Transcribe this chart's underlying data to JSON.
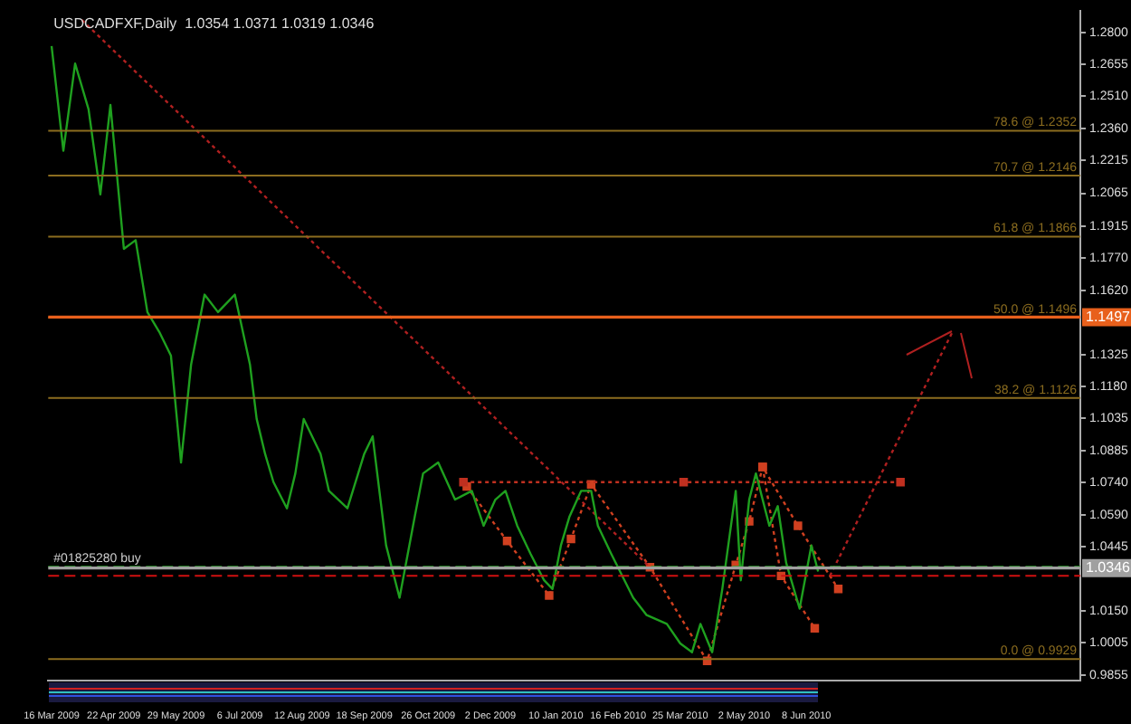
{
  "chart_data": {
    "type": "line",
    "title": "USDCADFXF,Daily  1.0354 1.0371 1.0319 1.0346",
    "x": [
      "2009-03-16",
      "2009-03-23",
      "2009-03-30",
      "2009-04-07",
      "2009-04-14",
      "2009-04-20",
      "2009-04-28",
      "2009-05-05",
      "2009-05-12",
      "2009-05-19",
      "2009-05-26",
      "2009-06-01",
      "2009-06-07",
      "2009-06-15",
      "2009-06-23",
      "2009-07-03",
      "2009-07-12",
      "2009-07-16",
      "2009-07-21",
      "2009-07-26",
      "2009-08-03",
      "2009-08-08",
      "2009-08-13",
      "2009-08-23",
      "2009-08-28",
      "2009-09-08",
      "2009-09-18",
      "2009-09-23",
      "2009-10-01",
      "2009-10-09",
      "2009-10-18",
      "2009-10-23",
      "2009-11-01",
      "2009-11-11",
      "2009-11-21",
      "2009-11-28",
      "2009-12-05",
      "2009-12-11",
      "2009-12-18",
      "2009-12-26",
      "2010-01-03",
      "2010-01-08",
      "2010-01-13",
      "2010-01-18",
      "2010-01-25",
      "2010-01-31",
      "2010-02-04",
      "2010-02-12",
      "2010-02-25",
      "2010-03-05",
      "2010-03-17",
      "2010-03-25",
      "2010-04-01",
      "2010-04-06",
      "2010-04-13",
      "2010-04-19",
      "2010-04-27",
      "2010-04-30",
      "2010-05-05",
      "2010-05-09",
      "2010-05-17",
      "2010-05-22",
      "2010-05-27",
      "2010-06-04",
      "2010-06-11",
      "2010-06-15"
    ],
    "series": [
      {
        "color": "#1fa01f",
        "marker": "none",
        "line_style": "solid",
        "values": [
          1.274,
          1.226,
          1.266,
          1.245,
          1.206,
          1.247,
          1.181,
          1.185,
          1.152,
          1.143,
          1.132,
          1.083,
          1.128,
          1.16,
          1.152,
          1.16,
          1.128,
          1.103,
          1.087,
          1.074,
          1.062,
          1.078,
          1.103,
          1.087,
          1.07,
          1.062,
          1.087,
          1.095,
          1.045,
          1.021,
          1.058,
          1.078,
          1.083,
          1.066,
          1.07,
          1.054,
          1.066,
          1.07,
          1.054,
          1.041,
          1.029,
          1.025,
          1.045,
          1.058,
          1.07,
          1.07,
          1.054,
          1.041,
          1.021,
          1.013,
          1.009,
          1.0,
          0.996,
          1.009,
          0.996,
          1.025,
          1.07,
          1.029,
          1.066,
          1.078,
          1.054,
          1.063,
          1.037,
          1.016,
          1.045,
          1.033
        ]
      },
      {
        "type": "line",
        "color": "#b02020",
        "marker": "none",
        "line_style": "dotted",
        "x": [
          "2009-04-03",
          "2010-03-07"
        ],
        "values": [
          1.286,
          1.035
        ]
      },
      {
        "type": "line",
        "color": "#c03020",
        "marker": "square",
        "line_style": "dotted",
        "x": [
          "2009-11-16",
          "2010-03-27",
          "2010-08-03"
        ],
        "values": [
          1.074,
          1.074,
          1.074
        ]
      },
      {
        "type": "line",
        "color": "#d04020",
        "marker": "square",
        "line_style": "dotted",
        "x": [
          "2009-11-18",
          "2009-12-12",
          "2010-01-06",
          "2010-01-19",
          "2010-01-31",
          "2010-03-07",
          "2010-04-10",
          "2010-04-27",
          "2010-05-05",
          "2010-05-13",
          "2010-06-03",
          "2010-06-27"
        ],
        "values": [
          1.072,
          1.047,
          1.022,
          1.048,
          1.073,
          1.035,
          0.992,
          1.036,
          1.056,
          1.081,
          1.054,
          1.025
        ]
      },
      {
        "type": "line",
        "color": "#d04020",
        "marker": "square",
        "line_style": "dotted",
        "x": [
          "2010-05-13",
          "2010-05-24",
          "2010-06-13"
        ],
        "values": [
          1.081,
          1.031,
          1.007
        ]
      },
      {
        "type": "line",
        "color": "#b02020",
        "marker": "none",
        "line_style": "dotted",
        "x": [
          "2010-06-22",
          "2010-09-03"
        ],
        "values": [
          1.031,
          1.143
        ]
      }
    ],
    "xlim": [
      "2009-03-14",
      "2010-11-18"
    ],
    "xticks": [
      {
        "value": "2009-03-16",
        "label": "16 Mar 2009"
      },
      {
        "value": "2009-04-22",
        "label": "22 Apr 2009"
      },
      {
        "value": "2009-05-29",
        "label": "29 May 2009"
      },
      {
        "value": "2009-07-06",
        "label": "6 Jul 2009"
      },
      {
        "value": "2009-08-12",
        "label": "12 Aug 2009"
      },
      {
        "value": "2009-09-18",
        "label": "18 Sep 2009"
      },
      {
        "value": "2009-10-26",
        "label": "26 Oct 2009"
      },
      {
        "value": "2009-12-02",
        "label": "2 Dec 2009"
      },
      {
        "value": "2010-01-10",
        "label": "10 Jan 2010"
      },
      {
        "value": "2010-02-16",
        "label": "16 Feb 2010"
      },
      {
        "value": "2010-03-25",
        "label": "25 Mar 2010"
      },
      {
        "value": "2010-05-02",
        "label": "2 May 2010"
      },
      {
        "value": "2010-06-08",
        "label": "8 Jun 2010"
      }
    ],
    "ylim": [
      0.983,
      1.29
    ],
    "yticks": [
      {
        "value": 1.28,
        "label": "1.2800"
      },
      {
        "value": 1.2655,
        "label": "1.2655"
      },
      {
        "value": 1.251,
        "label": "1.2510"
      },
      {
        "value": 1.236,
        "label": "1.2360"
      },
      {
        "value": 1.2215,
        "label": "1.2215"
      },
      {
        "value": 1.2065,
        "label": "1.2065"
      },
      {
        "value": 1.1915,
        "label": "1.1915"
      },
      {
        "value": 1.177,
        "label": "1.1770"
      },
      {
        "value": 1.162,
        "label": "1.1620"
      },
      {
        "value": 1.1325,
        "label": "1.1325"
      },
      {
        "value": 1.118,
        "label": "1.1180"
      },
      {
        "value": 1.1035,
        "label": "1.1035"
      },
      {
        "value": 1.0885,
        "label": "1.0885"
      },
      {
        "value": 1.074,
        "label": "1.0740"
      },
      {
        "value": 1.059,
        "label": "1.0590"
      },
      {
        "value": 1.0445,
        "label": "1.0445"
      },
      {
        "value": 1.015,
        "label": "1.0150"
      },
      {
        "value": 1.0005,
        "label": "1.0005"
      },
      {
        "value": 0.9855,
        "label": "0.9855"
      }
    ],
    "ref_lines": [
      {
        "axis": "y",
        "value": 1.2352,
        "label": "78.6 @ 1.2352",
        "color": "#8c6d1f"
      },
      {
        "axis": "y",
        "value": 1.2146,
        "label": "70.7 @ 1.2146",
        "color": "#8c6d1f"
      },
      {
        "axis": "y",
        "value": 1.1866,
        "label": "61.8 @ 1.1866",
        "color": "#8c6d1f"
      },
      {
        "axis": "y",
        "value": 1.1496,
        "label": "50.0 @ 1.1496",
        "color": "#8c6d1f"
      },
      {
        "axis": "y",
        "value": 1.1497,
        "color": "#e8601c"
      },
      {
        "axis": "y",
        "value": 1.1126,
        "label": "38.2 @ 1.1126",
        "color": "#8c6d1f"
      },
      {
        "axis": "y",
        "value": 0.9929,
        "label": "0.0 @ 0.9929",
        "color": "#8c6d1f"
      },
      {
        "axis": "y",
        "value": 1.0352,
        "label": "#01825280 buy",
        "color": "#2e9e2e",
        "line_style": "dashed"
      },
      {
        "axis": "y",
        "value": 1.0346,
        "color": "#a0a0a0"
      },
      {
        "axis": "y",
        "value": 1.031,
        "color": "#d01010",
        "line_style": "dashed"
      }
    ],
    "annotations": [
      {
        "text": "1.1497",
        "y": 1.1497
      },
      {
        "text": "1.0346",
        "y": 1.0346
      }
    ],
    "legend": false,
    "grid": false
  }
}
